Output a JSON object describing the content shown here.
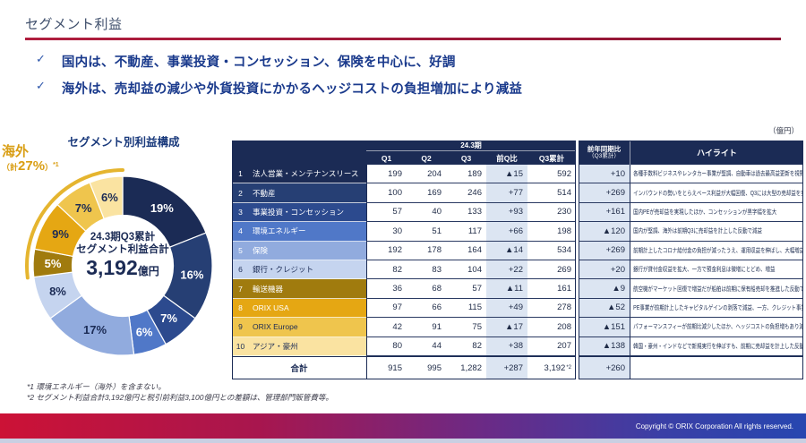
{
  "slide": {
    "title": "セグメント利益",
    "check_glyph": "✓",
    "bullets": [
      "国内は、不動産、事業投資・コンセッション、保険を中心に、好調",
      "海外は、売却益の減少や外貨投資にかかるヘッジコストの負担増加により減益"
    ],
    "unit_label": "（億円）",
    "footnotes": [
      "*1 環境エネルギー（海外）を含まない。",
      "*2 セグメント利益合計3,192億円と税引前利益3,100億円との差額は、管理部門販管費等。"
    ],
    "copyright": "Copyright © ORIX Corporation All rights reserved."
  },
  "chart_data": {
    "type": "pie",
    "title": "セグメント別利益構成",
    "categories": [
      "法人営業・メンテナンスリース",
      "不動産",
      "事業投資・コンセッション",
      "環境エネルギー",
      "保険",
      "銀行・クレジット",
      "輸送機器",
      "ORIX USA",
      "ORIX Europe",
      "アジア・豪州"
    ],
    "values": [
      19,
      16,
      7,
      6,
      17,
      8,
      5,
      9,
      7,
      6
    ],
    "colors": [
      "#1b2b55",
      "#263f74",
      "#2c4a8e",
      "#5078c8",
      "#91abde",
      "#c5d4ef",
      "#a07b0e",
      "#e5a713",
      "#efc54d",
      "#fae3a1"
    ],
    "label_colors": [
      "#ffffff",
      "#ffffff",
      "#ffffff",
      "#ffffff",
      "#1b2b55",
      "#1b2b55",
      "#ffffff",
      "#1b2b55",
      "#1b2b55",
      "#1b2b55"
    ],
    "center_label_1": "24.3期Q3累計",
    "center_label_2": "セグメント利益合計",
    "center_value": "3,192",
    "center_unit": "億円",
    "overseas_label": "海外",
    "overseas_prefix": "（計",
    "overseas_pct": "27%",
    "overseas_suffix": "）",
    "overseas_ref": "*1",
    "overseas_arc": {
      "from_index": 6,
      "to_index": 9,
      "color": "#e5b52f"
    }
  },
  "table": {
    "period_header": "24.3期",
    "q_columns": [
      "Q1",
      "Q2",
      "Q3",
      "前Q比",
      "Q3累計"
    ],
    "yoy_header": "前年同期比",
    "yoy_subheader": "（Q3累計）",
    "highlight_header": "ハイライト",
    "header_bg": "#1b2b55",
    "shade_bg": "#dce5f2",
    "rows": [
      {
        "no": "1",
        "name": "法人営業・メンテナンスリース",
        "q1": "199",
        "q2": "204",
        "q3": "189",
        "qoq": "▲15",
        "cum": "592",
        "yoy": "+10",
        "highlight": "各種手数料ビジネスやレンタカー事業が堅調、自動車は過去最高益更新を視野",
        "bg": "#1b2b55",
        "fg": "#ffffff"
      },
      {
        "no": "2",
        "name": "不動産",
        "q1": "100",
        "q2": "169",
        "q3": "246",
        "qoq": "+77",
        "cum": "514",
        "yoy": "+269",
        "highlight": "インバウンドの勢いをとらえベース利益が大幅回復、Q3には大型の売却益を実現",
        "bg": "#263f74",
        "fg": "#ffffff"
      },
      {
        "no": "3",
        "name": "事業投資・コンセッション",
        "q1": "57",
        "q2": "40",
        "q3": "133",
        "qoq": "+93",
        "cum": "230",
        "yoy": "+161",
        "highlight": "国内PEが売却益を実現したほか、コンセッションが黒字幅を拡大",
        "bg": "#2c4a8e",
        "fg": "#ffffff"
      },
      {
        "no": "4",
        "name": "環境エネルギー",
        "q1": "30",
        "q2": "51",
        "q3": "117",
        "qoq": "+66",
        "cum": "198",
        "yoy": "▲120",
        "highlight": "国内が堅調、海外は前期Q3に売却益を計上した反動で減益",
        "bg": "#5078c8",
        "fg": "#ffffff"
      },
      {
        "no": "5",
        "name": "保険",
        "q1": "192",
        "q2": "178",
        "q3": "164",
        "qoq": "▲14",
        "cum": "534",
        "yoy": "+269",
        "highlight": "前期計上したコロナ給付金の負担が減ったうえ、運用収益を伸ばし、大幅増益",
        "bg": "#91abde",
        "fg": "#ffffff"
      },
      {
        "no": "6",
        "name": "銀行・クレジット",
        "q1": "82",
        "q2": "83",
        "q3": "104",
        "qoq": "+22",
        "cum": "269",
        "yoy": "+20",
        "highlight": "銀行が貸付金収益を拡大、一方で預金利息は微増にとどめ、増益",
        "bg": "#c5d4ef",
        "fg": "#1b2b55"
      },
      {
        "no": "7",
        "name": "輸送機器",
        "q1": "36",
        "q2": "68",
        "q3": "57",
        "qoq": "▲11",
        "cum": "161",
        "yoy": "▲9",
        "highlight": "航空機がマーケット回復で増益だが船舶は前期に保有船売却を推進した反動で減益",
        "bg": "#a07b0e",
        "fg": "#ffffff"
      },
      {
        "no": "8",
        "name": "ORIX USA",
        "q1": "97",
        "q2": "66",
        "q3": "115",
        "qoq": "+49",
        "cum": "278",
        "yoy": "▲52",
        "highlight": "PE事業が前期計上したキャピタルゲインの剥落で減益、一方、クレジット事業は堅調",
        "bg": "#e5a713",
        "fg": "#ffffff"
      },
      {
        "no": "9",
        "name": "ORIX Europe",
        "q1": "42",
        "q2": "91",
        "q3": "75",
        "qoq": "▲17",
        "cum": "208",
        "yoy": "▲151",
        "highlight": "パフォーマンスフィーが前期比減少したほか、ヘッジコストの負担増もあり減益",
        "bg": "#efc54d",
        "fg": "#1b2b55"
      },
      {
        "no": "10",
        "name": "アジア・豪州",
        "q1": "80",
        "q2": "44",
        "q3": "82",
        "qoq": "+38",
        "cum": "207",
        "yoy": "▲138",
        "highlight": "韓国・豪州・インドなどで新規実行を伸ばすも、前期に売却益を計上した反動で減益",
        "bg": "#fae3a1",
        "fg": "#1b2b55"
      }
    ],
    "total": {
      "label": "合計",
      "q1": "915",
      "q2": "995",
      "q3": "1,282",
      "qoq": "+287",
      "cum": "3,192",
      "cum_note": "*2",
      "yoy": "+260",
      "highlight": ""
    }
  }
}
